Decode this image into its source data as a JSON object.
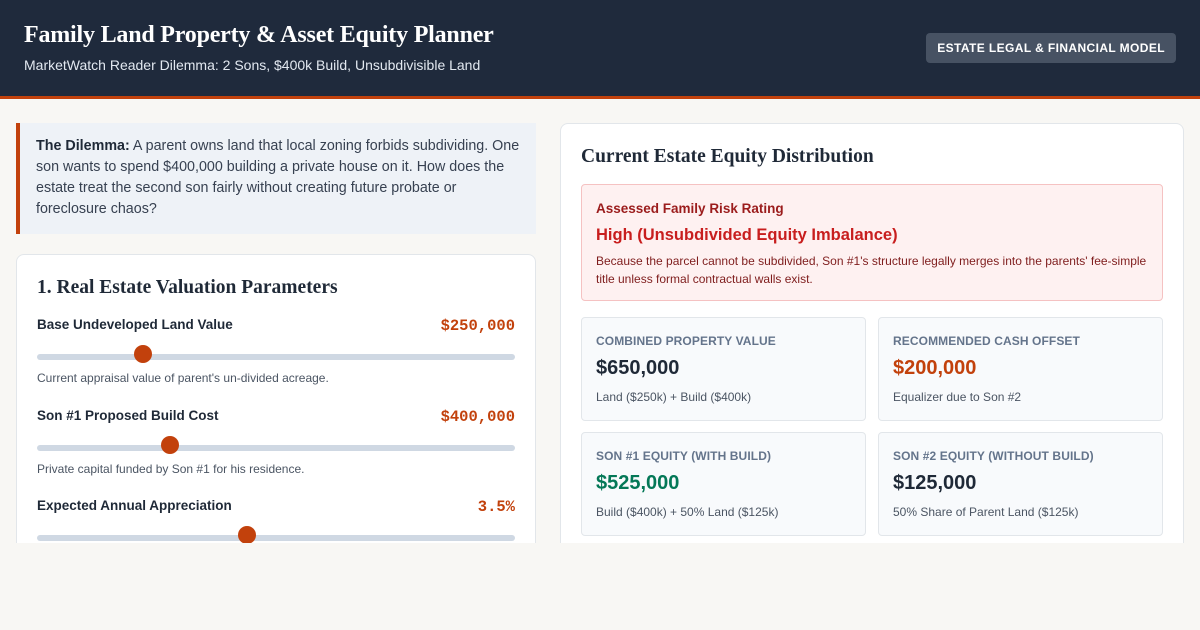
{
  "header": {
    "title": "Family Land Property & Asset Equity Planner",
    "subtitle": "MarketWatch Reader Dilemma: 2 Sons, $400k Build, Unsubdivisible Land",
    "badge": "ESTATE LEGAL & FINANCIAL MODEL"
  },
  "dilemma": {
    "label": "The Dilemma:",
    "text": " A parent owns land that local zoning forbids subdividing. One son wants to spend $400,000 building a private house on it. How does the estate treat the second son fairly without creating future probate or foreclosure chaos?"
  },
  "valuation": {
    "title": "1. Real Estate Valuation Parameters",
    "params": [
      {
        "label": "Base Undeveloped Land Value",
        "value": "$250,000",
        "help": "Current appraisal value of parent's un-divided acreage.",
        "slider_fraction": 0.222
      },
      {
        "label": "Son #1 Proposed Build Cost",
        "value": "$400,000",
        "help": "Private capital funded by Son #1 for his residence.",
        "slider_fraction": 0.279
      },
      {
        "label": "Expected Annual Appreciation",
        "value": "3.5%",
        "help": "",
        "slider_fraction": 0.44
      }
    ]
  },
  "distribution": {
    "title": "Current Estate Equity Distribution",
    "risk": {
      "label": "Assessed Family Risk Rating",
      "rating": "High (Unsubdivided Equity Imbalance)",
      "text": "Because the parcel cannot be subdivided, Son #1's structure legally merges into the parents' fee-simple title unless formal contractual walls exist."
    },
    "stats": [
      {
        "label": "Combined Property Value",
        "value": "$650,000",
        "sub": "Land ($250k) + Build ($400k)",
        "color": "#1f2937"
      },
      {
        "label": "Recommended Cash Offset",
        "value": "$200,000",
        "sub": "Equalizer due to Son #2",
        "color": "#c2410c"
      },
      {
        "label": "Son #1 Equity (With Build)",
        "value": "$525,000",
        "sub": "Build ($400k) + 50% Land ($125k)",
        "color": "#047857"
      },
      {
        "label": "Son #2 Equity (Without Build)",
        "value": "$125,000",
        "sub": "50% Share of Parent Land ($125k)",
        "color": "#1f2937"
      }
    ]
  }
}
